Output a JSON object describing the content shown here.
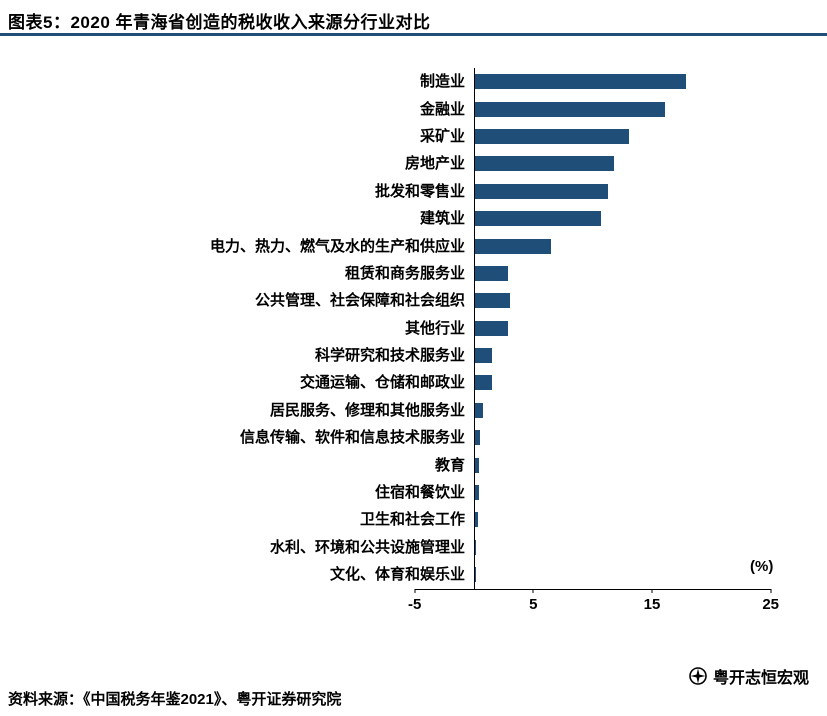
{
  "header": {
    "title": "图表5：2020 年青海省创造的税收收入来源分行业对比"
  },
  "chart_data": {
    "type": "bar",
    "orientation": "horizontal",
    "title": "2020 年青海省创造的税收收入来源分行业对比",
    "unit_label": "(%)",
    "xlim": [
      -5,
      25
    ],
    "xticks": [
      -5,
      5,
      15,
      25
    ],
    "xtick_labels": [
      "-5",
      "5",
      "15",
      "25"
    ],
    "grid": false,
    "bar_color": "#1F4E79",
    "categories": [
      "制造业",
      "金融业",
      "采矿业",
      "房地产业",
      "批发和零售业",
      "建筑业",
      "电力、热力、燃气及水的生产和供应业",
      "租赁和商务服务业",
      "公共管理、社会保障和社会组织",
      "其他行业",
      "科学研究和技术服务业",
      "交通运输、仓储和邮政业",
      "居民服务、修理和其他服务业",
      "信息传输、软件和信息技术服务业",
      "教育",
      "住宿和餐饮业",
      "卫生和社会工作",
      "水利、环境和公共设施管理业",
      "文化、体育和娱乐业"
    ],
    "values": [
      17.9,
      16.1,
      13.1,
      11.8,
      11.3,
      10.7,
      6.5,
      2.9,
      3.0,
      2.9,
      1.5,
      1.5,
      0.8,
      0.5,
      0.4,
      0.4,
      0.3,
      0.2,
      0.15
    ]
  },
  "footer": {
    "source": "资料来源：《中国税务年鉴2021》、粤开证券研究院",
    "logo_text": "粤开志恒宏观"
  },
  "colors": {
    "accent": "#1F4E79",
    "axis": "#000000"
  }
}
